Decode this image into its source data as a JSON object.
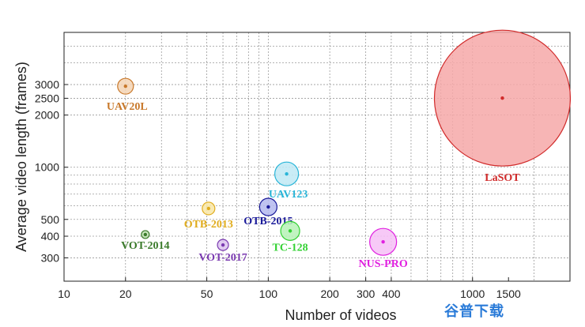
{
  "chart_data": {
    "type": "scatter",
    "title": "",
    "xlabel": "Number of videos",
    "ylabel": "Average video length (frames)",
    "xscale": "log",
    "yscale": "log",
    "xlim": [
      10,
      3000
    ],
    "ylim": [
      220,
      6000
    ],
    "grid": true,
    "x_ticks": [
      10,
      20,
      50,
      100,
      200,
      300,
      400,
      1000,
      1500
    ],
    "x_tick_labels": [
      "10",
      "20",
      "50",
      "100",
      "200",
      "300",
      "400",
      "1000",
      "1500"
    ],
    "y_ticks": [
      300,
      400,
      500,
      1000,
      2000,
      2500,
      3000
    ],
    "y_tick_labels": [
      "300",
      "400",
      "500",
      "1000",
      "2000",
      "2500",
      "3000"
    ],
    "points": [
      {
        "label": "UAV20L",
        "x": 20,
        "y": 2934,
        "color": "#c8782a",
        "fill": "#f3d4b4"
      },
      {
        "label": "OTB-2013",
        "x": 51,
        "y": 578,
        "color": "#e0ac1c",
        "fill": "#f8e6a6"
      },
      {
        "label": "VOT-2014",
        "x": 25,
        "y": 409,
        "color": "#3a7a2a",
        "fill": "#bde0b0"
      },
      {
        "label": "VOT-2017",
        "x": 60,
        "y": 356,
        "color": "#7a3ab0",
        "fill": "#dcc4ef"
      },
      {
        "label": "OTB-2015",
        "x": 100,
        "y": 590,
        "color": "#1a1a9a",
        "fill": "#b4b8ee"
      },
      {
        "label": "UAV123",
        "x": 123,
        "y": 915,
        "color": "#29b5d8",
        "fill": "#bfe9f5"
      },
      {
        "label": "TC-128",
        "x": 128,
        "y": 429,
        "color": "#33d133",
        "fill": "#b6f2b6"
      },
      {
        "label": "NUS-PRO",
        "x": 365,
        "y": 371,
        "color": "#e020e0",
        "fill": "#f6c0f6"
      },
      {
        "label": "LaSOT",
        "x": 1400,
        "y": 2506,
        "color": "#d12a2a",
        "fill": "#f6a8a8"
      }
    ]
  },
  "watermark": {
    "text": "谷普下载"
  }
}
